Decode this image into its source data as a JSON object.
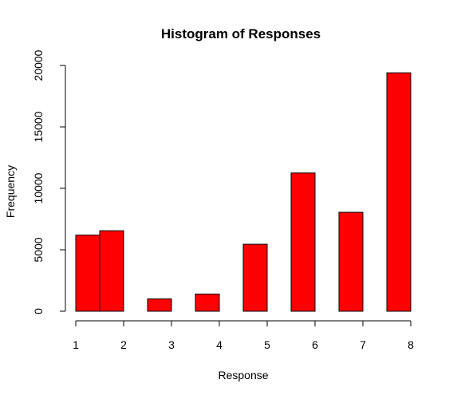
{
  "chart_data": {
    "type": "bar",
    "title": "Histogram of Responses",
    "xlabel": "Response",
    "ylabel": "Frequency",
    "bin_edges": [
      1.0,
      1.5,
      2.0,
      2.5,
      3.0,
      3.5,
      4.0,
      4.5,
      5.0,
      5.5,
      6.0,
      6.5,
      7.0,
      7.5,
      8.0
    ],
    "values": [
      6200,
      6550,
      0,
      1000,
      0,
      1400,
      0,
      5450,
      0,
      11250,
      0,
      8050,
      0,
      19400
    ],
    "xlim": [
      1,
      8
    ],
    "ylim": [
      0,
      20000
    ],
    "x_ticks": [
      "1",
      "2",
      "3",
      "4",
      "5",
      "6",
      "7",
      "8"
    ],
    "y_ticks": [
      "0",
      "5000",
      "10000",
      "15000",
      "20000"
    ],
    "bar_color": "#ff0000",
    "bar_border_color": "#000000",
    "grid": false,
    "legend": "none"
  }
}
